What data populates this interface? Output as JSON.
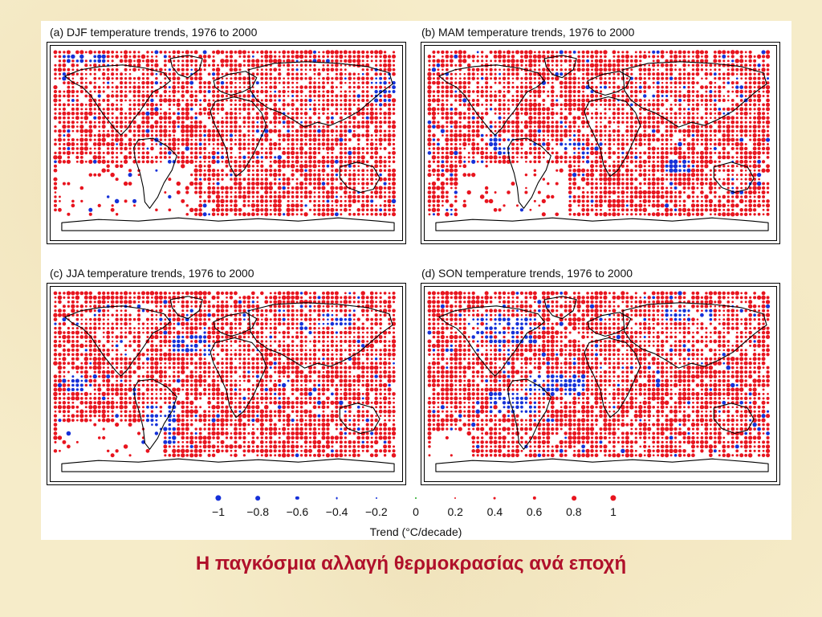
{
  "figure": {
    "panels": [
      {
        "id": "a",
        "title": "(a) DJF temperature trends, 1976 to 2000"
      },
      {
        "id": "b",
        "title": "(b) MAM temperature trends, 1976 to 2000"
      },
      {
        "id": "c",
        "title": "(c) JJA temperature trends, 1976 to 2000"
      },
      {
        "id": "d",
        "title": "(d) SON temperature trends, 1976 to 2000"
      }
    ],
    "legend": {
      "items": [
        {
          "label": "−1",
          "value": -1
        },
        {
          "label": "−0.8",
          "value": -0.8
        },
        {
          "label": "−0.6",
          "value": -0.6
        },
        {
          "label": "−0.4",
          "value": -0.4
        },
        {
          "label": "−0.2",
          "value": -0.2
        },
        {
          "label": "0",
          "value": 0
        },
        {
          "label": "0.2",
          "value": 0.2
        },
        {
          "label": "0.4",
          "value": 0.4
        },
        {
          "label": "0.6",
          "value": 0.6
        },
        {
          "label": "0.8",
          "value": 0.8
        },
        {
          "label": "1",
          "value": 1
        }
      ],
      "title": "Trend (°C/decade)"
    },
    "colors": {
      "warming": "#e8141e",
      "cooling": "#1530d8",
      "neutral": "#22aa22",
      "caption": "#b0102a"
    }
  },
  "caption": "Η παγκόσμια αλλαγή θερμοκρασίας ανά εποχή"
}
